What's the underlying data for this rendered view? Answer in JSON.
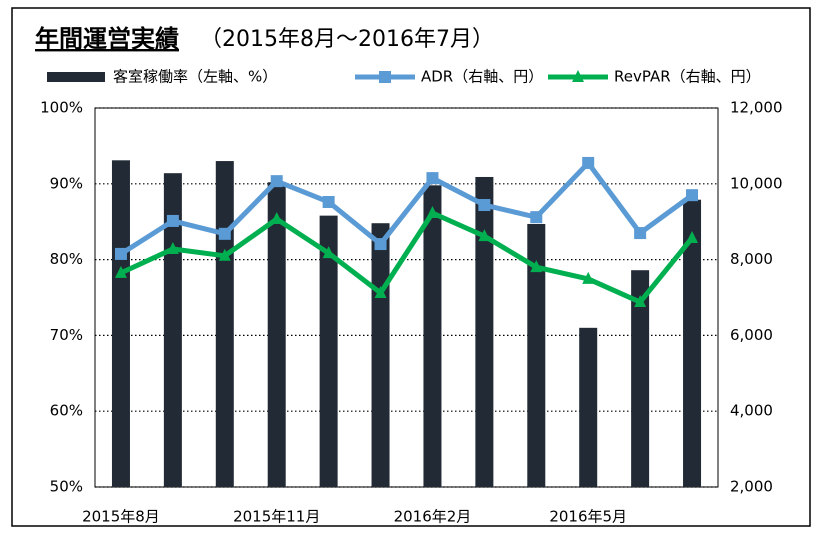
{
  "chart_data": {
    "type": "bar",
    "title": "年間運営実績",
    "subtitle": "（2015年8月～2016年7月）",
    "categories": [
      "2015年8月",
      null,
      null,
      "2015年11月",
      null,
      null,
      "2016年2月",
      null,
      null,
      "2016年5月",
      null,
      null
    ],
    "series": [
      {
        "name": "客室稼働率（左軸、%）",
        "type": "bar",
        "color": "#222a35",
        "axis": "y",
        "values": [
          93.1,
          91.4,
          93.0,
          90.2,
          85.8,
          84.8,
          89.8,
          90.9,
          84.7,
          71.0,
          78.6,
          87.9
        ]
      },
      {
        "name": "ADR（右軸、円）",
        "type": "line",
        "color": "#5b9bd5",
        "axis": "y2",
        "marker": "square",
        "values": [
          8150,
          9020,
          8680,
          10070,
          9520,
          8410,
          10150,
          9440,
          9120,
          10550,
          8700,
          9700
        ]
      },
      {
        "name": "RevPAR（右軸、円）",
        "type": "line",
        "color": "#00b050",
        "axis": "y2",
        "marker": "triangle",
        "values": [
          7650,
          8280,
          8100,
          9070,
          8170,
          7120,
          9230,
          8620,
          7800,
          7490,
          6880,
          8570
        ]
      }
    ],
    "ylim": [
      50,
      100
    ],
    "yticks": [
      {
        "value": 50,
        "label": "50%"
      },
      {
        "value": 60,
        "label": "60%"
      },
      {
        "value": 70,
        "label": "70%"
      },
      {
        "value": 80,
        "label": "80%"
      },
      {
        "value": 90,
        "label": "90%"
      },
      {
        "value": 100,
        "label": "100%"
      }
    ],
    "y2lim": [
      2000,
      12000
    ],
    "y2ticks": [
      {
        "value": 2000,
        "label": "2,000"
      },
      {
        "value": 4000,
        "label": "4,000"
      },
      {
        "value": 6000,
        "label": "6,000"
      },
      {
        "value": 8000,
        "label": "8,000"
      },
      {
        "value": 10000,
        "label": "10,000"
      },
      {
        "value": 12000,
        "label": "12,000"
      }
    ],
    "grid": true,
    "legend": "top"
  }
}
